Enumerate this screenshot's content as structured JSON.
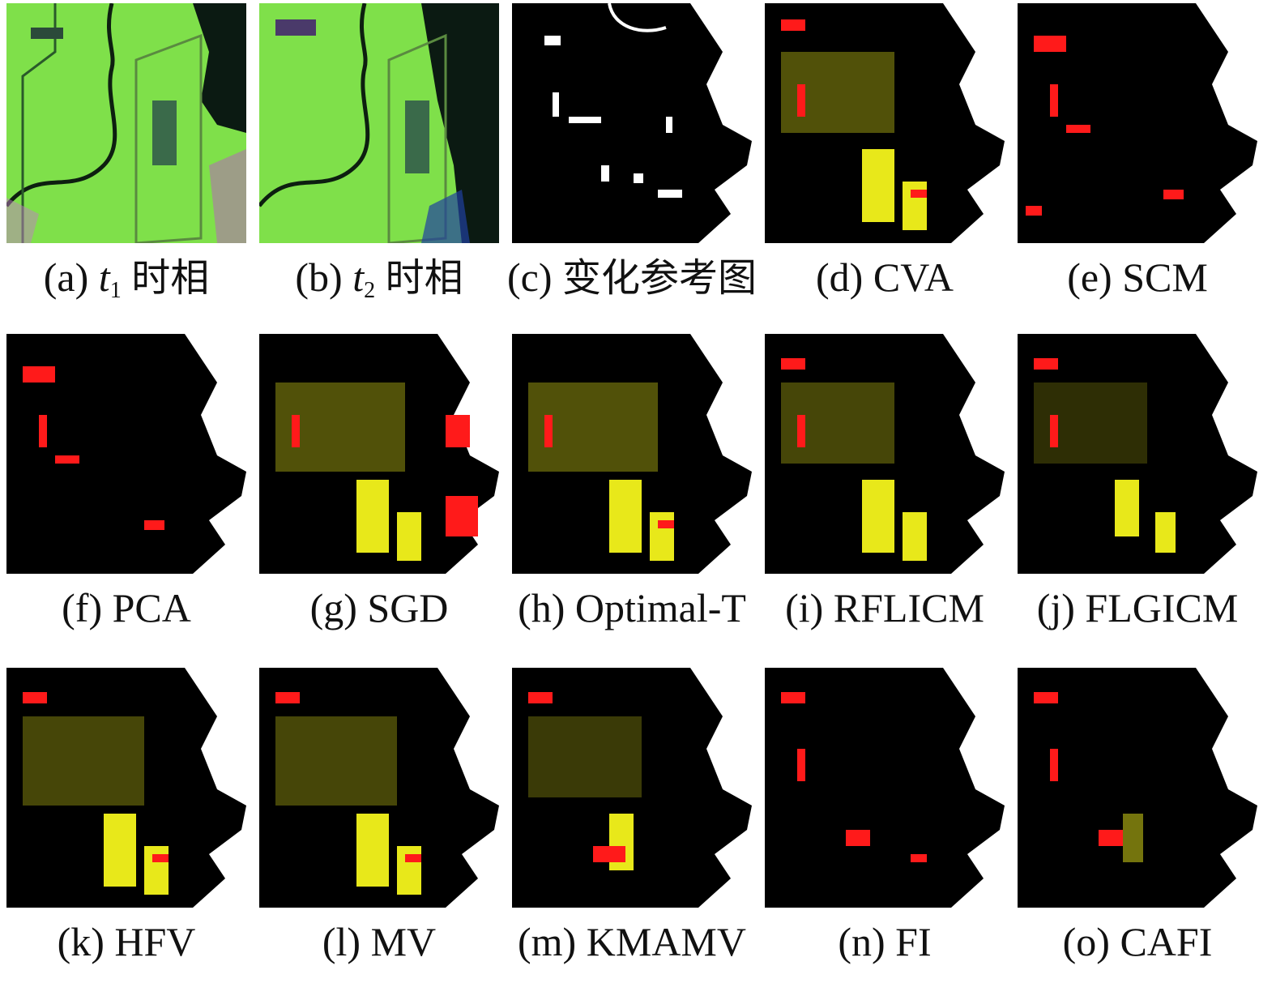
{
  "panels": [
    {
      "id": "a",
      "label": "(a)",
      "var": "t",
      "sub": "1",
      "text": "时相"
    },
    {
      "id": "b",
      "label": "(b)",
      "var": "t",
      "sub": "2",
      "text": "时相"
    },
    {
      "id": "c",
      "label": "(c)",
      "text": "变化参考图"
    },
    {
      "id": "d",
      "label": "(d)",
      "text": "CVA"
    },
    {
      "id": "e",
      "label": "(e)",
      "text": "SCM"
    },
    {
      "id": "f",
      "label": "(f)",
      "text": "PCA"
    },
    {
      "id": "g",
      "label": "(g)",
      "text": "SGD"
    },
    {
      "id": "h",
      "label": "(h)",
      "text": "Optimal-T"
    },
    {
      "id": "i",
      "label": "(i)",
      "text": "RFLICM"
    },
    {
      "id": "j",
      "label": "(j)",
      "text": "FLGICM"
    },
    {
      "id": "k",
      "label": "(k)",
      "text": "HFV"
    },
    {
      "id": "l",
      "label": "(l)",
      "text": "MV"
    },
    {
      "id": "m",
      "label": "(m)",
      "text": "KMAMV"
    },
    {
      "id": "n",
      "label": "(n)",
      "text": "FI"
    },
    {
      "id": "o",
      "label": "(o)",
      "text": "CAFI"
    }
  ],
  "colors": {
    "background": "#000000",
    "water": "#ffffff",
    "false_alarm": "#ff1a1a",
    "missed_change": "#e8e81a",
    "satellite_land": "#7fe04a",
    "satellite_water": "#0b1a12"
  }
}
